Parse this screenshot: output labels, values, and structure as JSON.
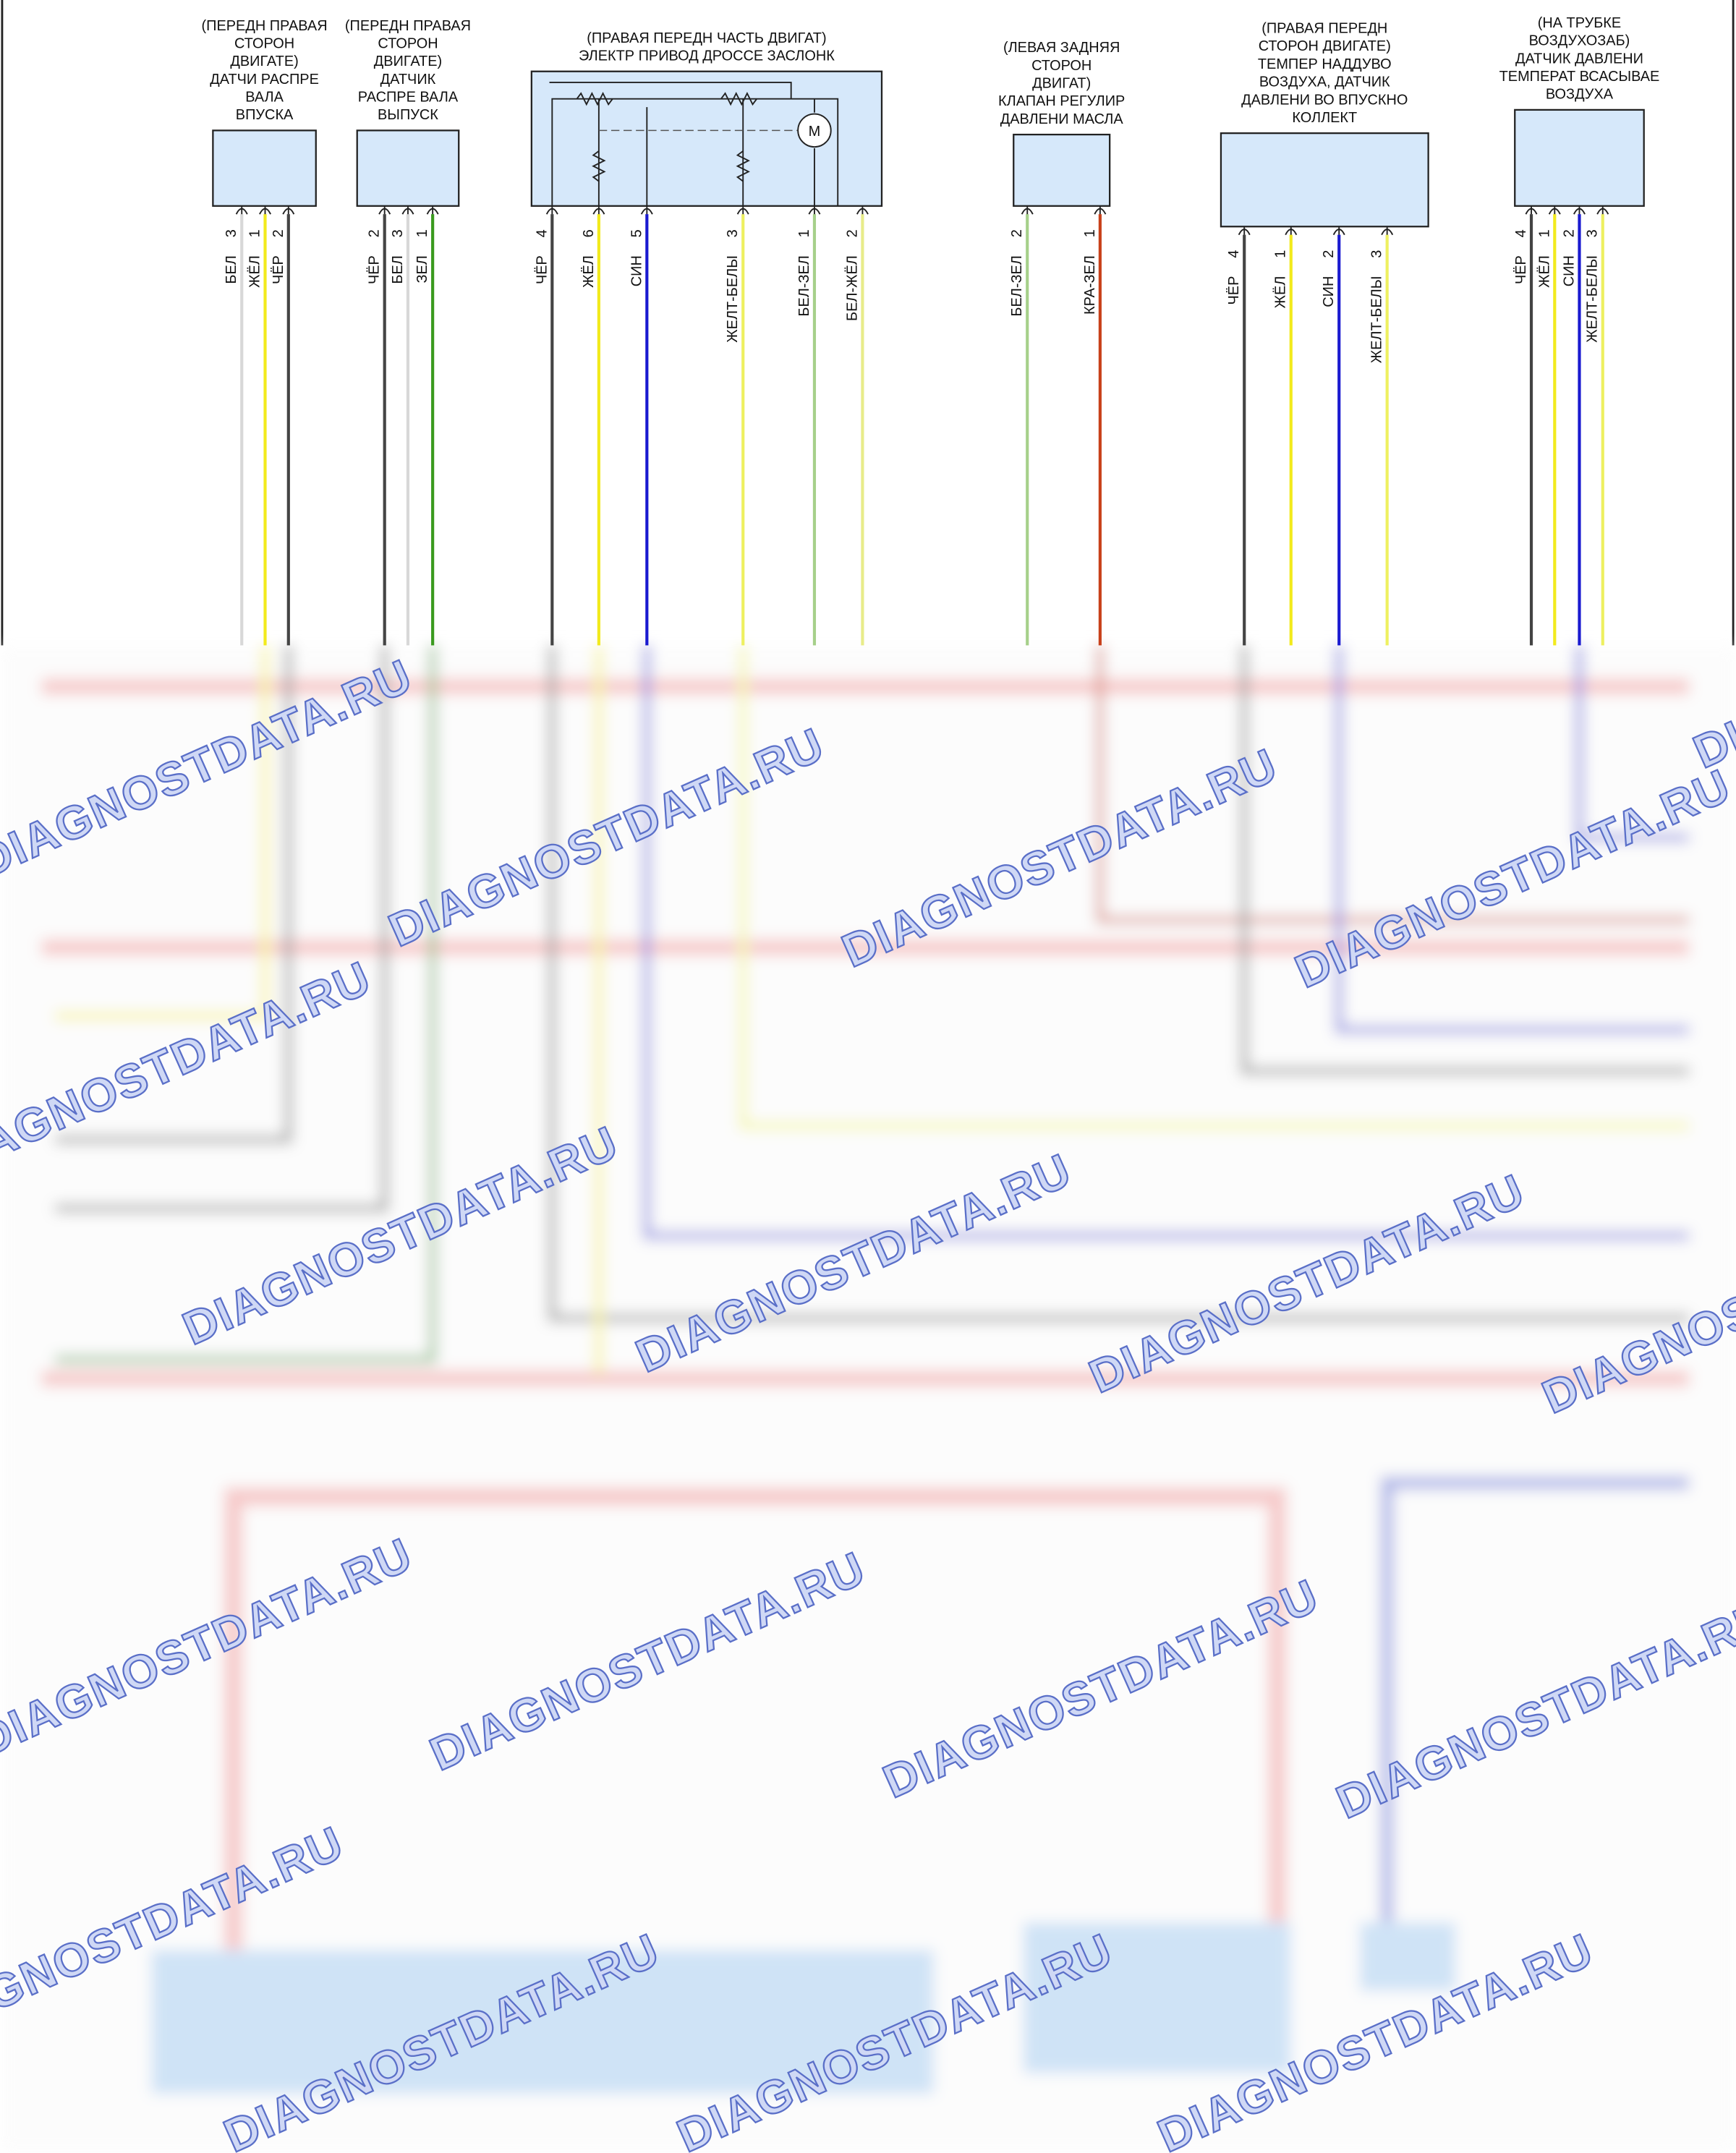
{
  "components": [
    {
      "label": [
        "(ПЕРЕДН ПРАВАЯ",
        "СТОРОН",
        "ДВИГАТЕ)",
        "ДАТЧИ РАСПРЕ",
        "ВАЛА",
        "ВПУСКА"
      ],
      "pins": [
        {
          "number": "3",
          "wire": "БЕЛ",
          "color": "#d8d8d8"
        },
        {
          "number": "1",
          "wire": "ЖЁЛ",
          "color": "#f2ea1c"
        },
        {
          "number": "2",
          "wire": "ЧЁР",
          "color": "#444444"
        }
      ]
    },
    {
      "label": [
        "(ПЕРЕДН ПРАВАЯ",
        "СТОРОН",
        "ДВИГАТЕ)",
        "ДАТЧИК",
        "РАСПРЕ ВАЛА",
        "ВЫПУСК"
      ],
      "pins": [
        {
          "number": "2",
          "wire": "ЧЁР",
          "color": "#444444"
        },
        {
          "number": "3",
          "wire": "БЕЛ",
          "color": "#d8d8d8"
        },
        {
          "number": "1",
          "wire": "ЗЕЛ",
          "color": "#3a9a1e"
        }
      ]
    },
    {
      "label": [
        "(ПРАВАЯ ПЕРЕДН ЧАСТЬ ДВИГАТ)",
        "ЭЛЕКТР ПРИВОД ДРОССЕ ЗАСЛОНК"
      ],
      "motor": "M",
      "pins": [
        {
          "number": "4",
          "wire": "ЧЁР",
          "color": "#444444"
        },
        {
          "number": "6",
          "wire": "ЖЁЛ",
          "color": "#f2ea1c"
        },
        {
          "number": "5",
          "wire": "СИН",
          "color": "#1a1ad0"
        },
        {
          "number": "3",
          "wire": "ЖЕЛТ-БЕЛЫ",
          "color": "#eef060"
        },
        {
          "number": "1",
          "wire": "БЕЛ-ЗЕЛ",
          "color": "#a6d08a"
        },
        {
          "number": "2",
          "wire": "БЕЛ-ЖЁЛ",
          "color": "#e8ec8a"
        }
      ]
    },
    {
      "label": [
        "(ЛЕВАЯ ЗАДНЯЯ",
        "СТОРОН",
        "ДВИГАТ)",
        "КЛАПАН РЕГУЛИР",
        "ДАВЛЕНИ МАСЛА"
      ],
      "pins": [
        {
          "number": "2",
          "wire": "БЕЛ-ЗЕЛ",
          "color": "#a6d08a"
        },
        {
          "number": "1",
          "wire": "КРА-ЗЕЛ",
          "color": "#c8401a"
        }
      ]
    },
    {
      "label": [
        "(ПРАВАЯ ПЕРЕДН",
        "СТОРОН ДВИГАТЕ)",
        "ТЕМПЕР НАДДУВО",
        "ВОЗДУХА, ДАТЧИК",
        "ДАВЛЕНИ ВО ВПУСКНО",
        "КОЛЛЕКТ"
      ],
      "pins": [
        {
          "number": "4",
          "wire": "ЧЁР",
          "color": "#444444"
        },
        {
          "number": "1",
          "wire": "ЖЁЛ",
          "color": "#f2ea1c"
        },
        {
          "number": "2",
          "wire": "СИН",
          "color": "#1a1ad0"
        },
        {
          "number": "3",
          "wire": "ЖЕЛТ-БЕЛЫ",
          "color": "#eef060"
        }
      ]
    },
    {
      "label": [
        "(НА ТРУБКЕ",
        "ВОЗДУХОЗАБ)",
        "ДАТЧИК ДАВЛЕНИ",
        "ТЕМПЕРАТ ВСАСЫВАЕ",
        "ВОЗДУХА"
      ],
      "pins": [
        {
          "number": "4",
          "wire": "ЧЁР",
          "color": "#444444"
        },
        {
          "number": "1",
          "wire": "ЖЁЛ",
          "color": "#f2ea1c"
        },
        {
          "number": "2",
          "wire": "СИН",
          "color": "#1a1ad0"
        },
        {
          "number": "3",
          "wire": "ЖЕЛТ-БЕЛЫ",
          "color": "#eef060"
        }
      ]
    }
  ],
  "watermark": "DIAGNOSTDATA.RU"
}
